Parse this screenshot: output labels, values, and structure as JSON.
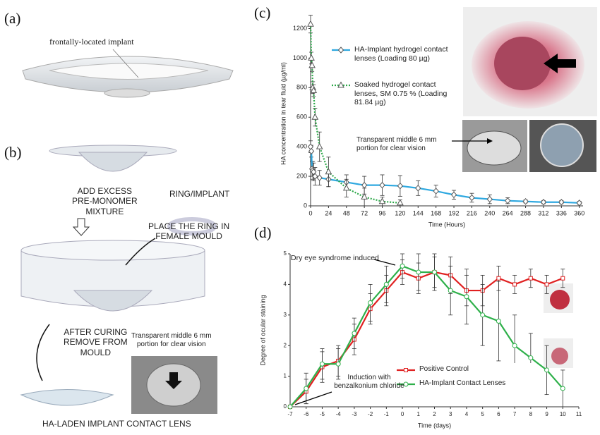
{
  "panels": {
    "a": {
      "label": "(a)",
      "annotation": "frontally-located implant"
    },
    "b": {
      "label": "(b)",
      "step1": [
        "ADD EXCESS",
        "PRE-MONOMER",
        "MIXTURE"
      ],
      "ring": "RING/IMPLANT",
      "step2": [
        "PLACE THE RING IN",
        "FEMALE MOULD"
      ],
      "step3": [
        "AFTER CURING",
        "REMOVE FROM",
        "MOULD"
      ],
      "photo_caption": [
        "Transparent middle 6 mm",
        "portion for clear vision"
      ],
      "result": "HA-LADEN IMPLANT CONTACT LENS"
    },
    "c": {
      "label": "(c)"
    },
    "d": {
      "label": "(d)"
    }
  },
  "chart_data": [
    {
      "type": "line",
      "xlabel": "Time (Hours)",
      "ylabel": "HA concentration in tear fluid (µg/ml)",
      "annotation": "Transparent middle 6 mm portion for clear vision",
      "xlim": [
        0,
        365
      ],
      "xticks": [
        0,
        24,
        48,
        72,
        96,
        120,
        144,
        168,
        192,
        216,
        240,
        264,
        288,
        312,
        336,
        360
      ],
      "ylim": [
        0,
        1250
      ],
      "yticks": [
        0,
        200,
        400,
        600,
        800,
        1000,
        1200
      ],
      "series": [
        {
          "name": "HA-Implant hydrogel contact lenses (Loading 80 µg)",
          "color": "#2ea8e0",
          "marker": "diamond",
          "line_style": "solid",
          "x": [
            0,
            1,
            2,
            3,
            4,
            6,
            12,
            24,
            48,
            72,
            96,
            120,
            144,
            168,
            192,
            216,
            240,
            264,
            288,
            312,
            336,
            360
          ],
          "values": [
            400,
            370,
            250,
            240,
            230,
            200,
            190,
            180,
            160,
            140,
            140,
            135,
            120,
            100,
            75,
            55,
            45,
            35,
            30,
            25,
            25,
            20
          ],
          "errors": [
            40,
            40,
            50,
            60,
            60,
            60,
            50,
            50,
            50,
            60,
            70,
            70,
            50,
            40,
            30,
            30,
            30,
            20,
            10,
            10,
            10,
            10
          ]
        },
        {
          "name": "Soaked hydrogel contact lenses, SM 0.75 % (Loading 81.84 µg)",
          "color": "#2ea84a",
          "marker": "triangle",
          "line_style": "dotted",
          "x": [
            0,
            1,
            2,
            3,
            4,
            6,
            12,
            24,
            48,
            72,
            96,
            120
          ],
          "values": [
            1230,
            1000,
            950,
            800,
            780,
            600,
            400,
            230,
            120,
            60,
            30,
            20
          ],
          "errors": [
            60,
            40,
            40,
            40,
            40,
            60,
            100,
            100,
            60,
            60,
            30,
            20
          ]
        }
      ]
    },
    {
      "type": "line",
      "xlabel": "Time (days)",
      "ylabel": "Degree of ocular staining",
      "annotations": [
        "Dry eye syndrome induced",
        "Induction with benzalkonium chloride"
      ],
      "xlim": [
        -7,
        11
      ],
      "xticks": [
        -7,
        -6,
        -5,
        -4,
        -3,
        -2,
        -1,
        0,
        1,
        2,
        3,
        4,
        5,
        6,
        7,
        8,
        9,
        10,
        11
      ],
      "ylim": [
        0,
        5
      ],
      "yticks": [
        0,
        1,
        2,
        3,
        4,
        5
      ],
      "series": [
        {
          "name": "Positive Control",
          "color": "#e02020",
          "marker": "square",
          "line_style": "solid",
          "x": [
            -7,
            -6,
            -5,
            -4,
            -3,
            -2,
            -1,
            0,
            1,
            2,
            3,
            4,
            5,
            6,
            7,
            8,
            9,
            10
          ],
          "values": [
            0,
            0.5,
            1.3,
            1.5,
            2.2,
            3.2,
            3.8,
            4.4,
            4.2,
            4.4,
            4.3,
            3.8,
            3.8,
            4.2,
            4.0,
            4.2,
            4.0,
            4.2
          ],
          "errors": [
            0,
            0.4,
            0.5,
            0.5,
            0.5,
            0.5,
            0.5,
            0.4,
            0.5,
            0.5,
            0.6,
            0.5,
            0.5,
            0.4,
            0.3,
            0.3,
            0.3,
            0.3
          ]
        },
        {
          "name": "HA-Implant Contact Lenses",
          "color": "#2eb04a",
          "marker": "circle",
          "line_style": "solid",
          "x": [
            -7,
            -6,
            -5,
            -4,
            -3,
            -2,
            -1,
            0,
            1,
            2,
            3,
            4,
            5,
            6,
            7,
            8,
            9,
            10
          ],
          "values": [
            0,
            0.6,
            1.4,
            1.4,
            2.4,
            3.4,
            4.0,
            4.6,
            4.4,
            4.4,
            3.8,
            3.6,
            3.0,
            2.8,
            2.0,
            1.6,
            1.2,
            0.6
          ],
          "errors": [
            0,
            0.5,
            0.5,
            0.5,
            0.5,
            0.6,
            0.6,
            0.4,
            0.6,
            0.6,
            0.8,
            0.9,
            1.0,
            1.3,
            1.0,
            0.8,
            0.8,
            0.6
          ]
        }
      ]
    }
  ]
}
